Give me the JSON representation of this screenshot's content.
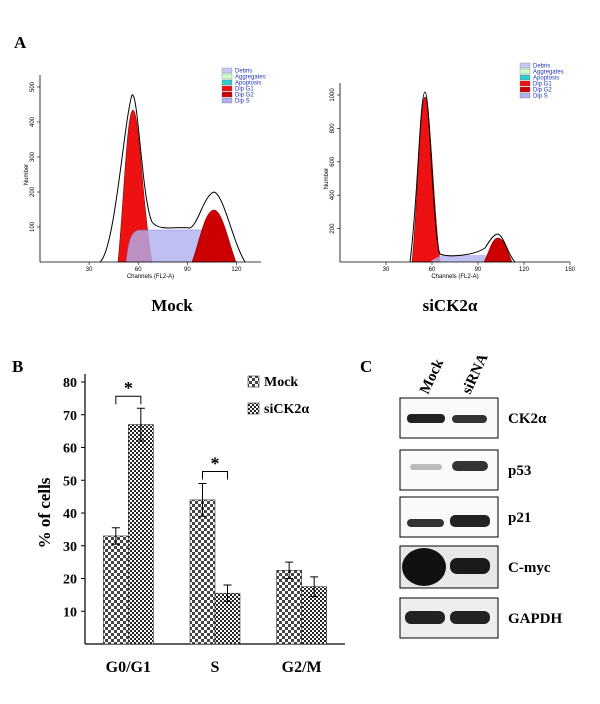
{
  "panel_labels": [
    "A",
    "B",
    "C"
  ],
  "flow_plots": [
    {
      "caption": "Mock",
      "ylabel": "Number",
      "xlabel": "Channels (FL2-A)",
      "xlim": [
        0,
        135
      ],
      "ylim": [
        0,
        500
      ],
      "xticks": [
        30,
        60,
        90,
        120
      ],
      "yticks": [
        100,
        200,
        300,
        400,
        500
      ],
      "legend": [
        {
          "name": "Debris",
          "color": "#c9c9f5"
        },
        {
          "name": "Aggregates",
          "color": "#ccffcc"
        },
        {
          "name": "Apoptosis",
          "color": "#33cccc"
        },
        {
          "name": "Dip G1",
          "color": "#ee1111"
        },
        {
          "name": "Dip G2",
          "color": "#cc0000"
        },
        {
          "name": "Dip S",
          "color": "#b0b0f0"
        }
      ]
    },
    {
      "caption": "siCK2α",
      "ylabel": "Number",
      "xlabel": "Channels (FL2-A)",
      "xlim": [
        0,
        150
      ],
      "ylim": [
        0,
        1000
      ],
      "xticks": [
        30,
        60,
        90,
        120,
        150
      ],
      "yticks": [
        200,
        400,
        600,
        800,
        1000
      ],
      "legend": [
        {
          "name": "Debris",
          "color": "#c9c9f5"
        },
        {
          "name": "Aggregates",
          "color": "#ccffcc"
        },
        {
          "name": "Apoptosis",
          "color": "#33cccc"
        },
        {
          "name": "Dip G1",
          "color": "#ee1111"
        },
        {
          "name": "Dip G2",
          "color": "#cc0000"
        },
        {
          "name": "Dip S",
          "color": "#b0b0f0"
        }
      ]
    }
  ],
  "chart_data": {
    "type": "bar",
    "ylabel": "% of cells",
    "categories": [
      "G0/G1",
      "S",
      "G2/M"
    ],
    "series": [
      {
        "name": "Mock",
        "color": "#444444",
        "values": [
          33,
          44,
          22.5
        ],
        "errors": [
          2.5,
          5,
          2.5
        ]
      },
      {
        "name": "siCK2α",
        "color": "#222222",
        "values": [
          67,
          15.5,
          17.5
        ],
        "errors": [
          5,
          2.5,
          3
        ]
      }
    ],
    "ylim": [
      0,
      80
    ],
    "yticks": [
      10,
      20,
      30,
      40,
      50,
      60,
      70,
      80
    ],
    "annotations": [
      {
        "text": "*",
        "category": 0
      },
      {
        "text": "*",
        "category": 1
      }
    ]
  },
  "blot": {
    "lanes": [
      "Mock",
      "siRNA"
    ],
    "proteins": [
      "CK2α",
      "p53",
      "p21",
      "C-myc",
      "GAPDH"
    ]
  }
}
